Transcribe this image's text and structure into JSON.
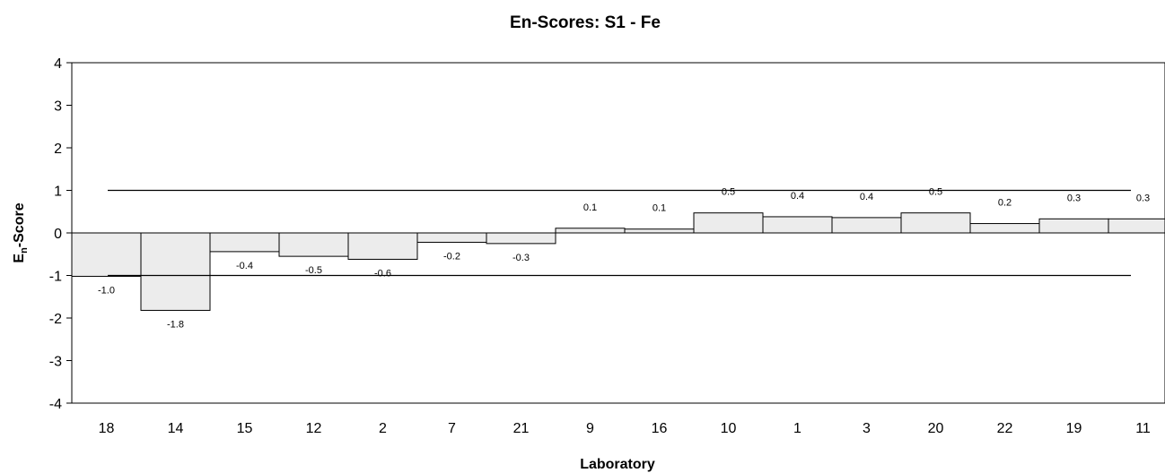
{
  "chart_data": {
    "type": "bar",
    "title": "En-Scores: S1 - Fe",
    "xlabel": "Laboratory",
    "ylabel_main": "E",
    "ylabel_sub": "n",
    "ylabel_rest": "-Score",
    "ylim": [
      -4,
      4
    ],
    "yticks": [
      "-4",
      "-3",
      "-2",
      "-1",
      "0",
      "1",
      "2",
      "3",
      "4"
    ],
    "categories": [
      "18",
      "14",
      "15",
      "12",
      "2",
      "7",
      "21",
      "9",
      "16",
      "10",
      "1",
      "3",
      "20",
      "22",
      "19",
      "11"
    ],
    "values": [
      -1.0,
      -1.8,
      -0.4,
      -0.5,
      -0.6,
      -0.2,
      -0.3,
      0.1,
      0.1,
      0.5,
      0.4,
      0.4,
      0.5,
      0.2,
      0.3,
      0.3
    ],
    "bar_heights": [
      -1.02,
      -1.82,
      -0.44,
      -0.55,
      -0.62,
      -0.22,
      -0.25,
      0.11,
      0.09,
      0.47,
      0.38,
      0.36,
      0.47,
      0.22,
      0.33,
      0.33
    ],
    "value_labels": [
      "-1.0",
      "-1.8",
      "-0.4",
      "-0.5",
      "-0.6",
      "-0.2",
      "-0.3",
      "0.1",
      "0.1",
      "0.5",
      "0.4",
      "0.4",
      "0.5",
      "0.2",
      "0.3",
      "0.3"
    ],
    "reference_lines": [
      1,
      -1
    ],
    "bar_color": "#ececec",
    "grid": false,
    "legend": "none"
  }
}
